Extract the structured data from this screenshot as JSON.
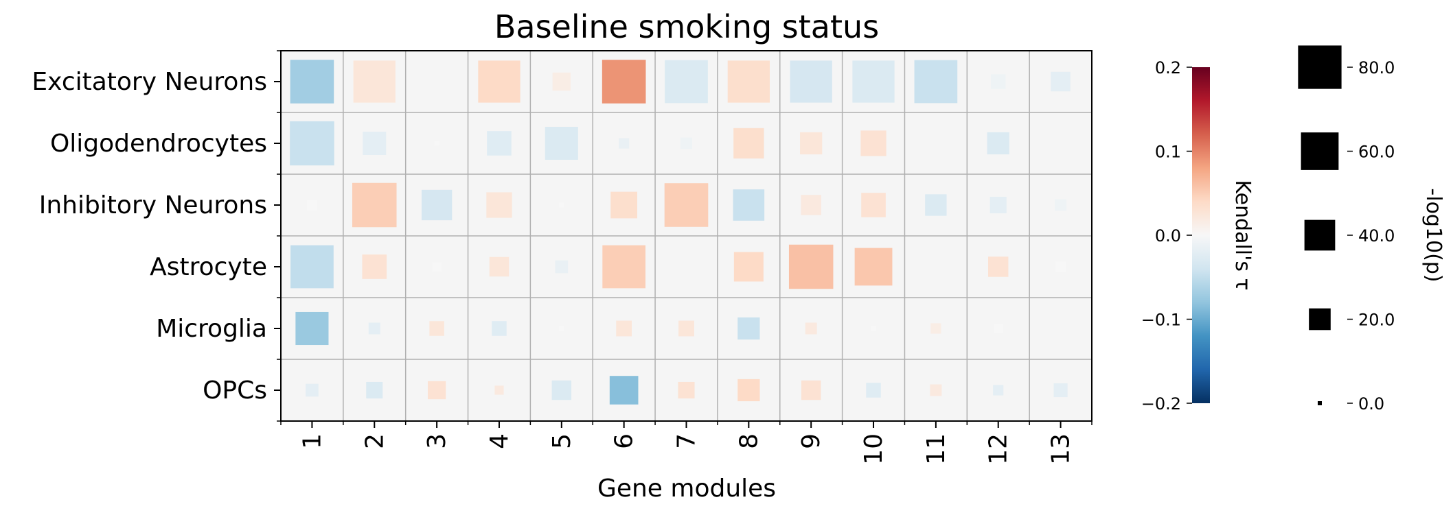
{
  "chart_data": {
    "type": "heatmap",
    "title": "Baseline smoking status",
    "xlabel": "Gene modules",
    "ylabel": "",
    "rows": [
      "Excitatory Neurons",
      "Oligodendrocytes",
      "Inhibitory Neurons",
      "Astrocyte",
      "Microglia",
      "OPCs"
    ],
    "columns": [
      "1",
      "2",
      "3",
      "4",
      "5",
      "6",
      "7",
      "8",
      "9",
      "10",
      "11",
      "12",
      "13"
    ],
    "color_metric": "Kendall's τ",
    "size_metric": "-log10(p)",
    "color_scale": {
      "colormap": "RdBu_r",
      "vmin": -0.2,
      "vmax": 0.2,
      "ticks": [
        0.2,
        0.1,
        0.0,
        -0.1,
        -0.2
      ],
      "tick_labels": [
        "0.2",
        "0.1",
        "0.0",
        "−0.1",
        "−0.2"
      ],
      "label": "Kendall's τ"
    },
    "size_scale": {
      "ticks": [
        80.0,
        60.0,
        40.0,
        20.0,
        0.0
      ],
      "tick_labels": [
        "80.0",
        "60.0",
        "40.0",
        "20.0",
        "0.0"
      ],
      "label": "-log10(p)"
    },
    "tau": [
      [
        -0.07,
        0.025,
        0.0,
        0.04,
        0.015,
        0.09,
        -0.03,
        0.035,
        -0.035,
        -0.03,
        -0.045,
        -0.01,
        -0.02
      ],
      [
        -0.045,
        -0.02,
        0.0,
        -0.025,
        -0.03,
        -0.015,
        -0.01,
        0.035,
        0.025,
        0.03,
        0.0,
        -0.03,
        0.0
      ],
      [
        0.0,
        0.05,
        -0.035,
        0.025,
        0.0,
        0.035,
        0.05,
        -0.045,
        0.02,
        0.03,
        -0.03,
        -0.02,
        -0.01
      ],
      [
        -0.05,
        0.03,
        0.0,
        0.025,
        -0.015,
        0.05,
        0.0,
        0.04,
        0.06,
        0.055,
        0.0,
        0.03,
        0.0
      ],
      [
        -0.075,
        -0.02,
        0.025,
        -0.025,
        0.0,
        0.025,
        0.025,
        -0.045,
        0.02,
        0.0,
        0.015,
        0.0,
        0.0
      ],
      [
        -0.02,
        -0.03,
        0.03,
        0.02,
        -0.03,
        -0.085,
        0.03,
        0.04,
        0.03,
        -0.025,
        0.02,
        -0.02,
        -0.02
      ]
    ],
    "neglog10p": [
      [
        70,
        65,
        0,
        65,
        12,
        70,
        68,
        65,
        65,
        65,
        68,
        8,
        14
      ],
      [
        72,
        20,
        1,
        22,
        40,
        4,
        5,
        34,
        18,
        24,
        0,
        18,
        0
      ],
      [
        4,
        72,
        34,
        24,
        1,
        26,
        70,
        36,
        15,
        22,
        17,
        10,
        5
      ],
      [
        68,
        22,
        3,
        14,
        6,
        68,
        0,
        32,
        72,
        52,
        0,
        15,
        4
      ],
      [
        40,
        5,
        8,
        8,
        1,
        9,
        9,
        18,
        5,
        1,
        4,
        3,
        0
      ],
      [
        6,
        10,
        12,
        3,
        14,
        30,
        10,
        18,
        14,
        8,
        5,
        4,
        7
      ]
    ]
  }
}
